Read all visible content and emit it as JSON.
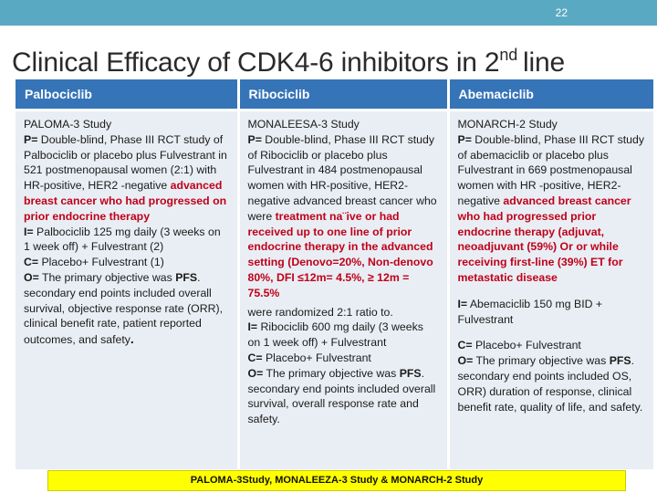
{
  "slide": {
    "page_number": "22"
  },
  "title": {
    "main": "Clinical Efficacy of CDK4-6 inhibitors in 2",
    "sup": "nd",
    "tail": "line"
  },
  "columns": [
    {
      "header": "Palbociclib"
    },
    {
      "header": "Ribociclib"
    },
    {
      "header": "Abemaciclib"
    }
  ],
  "palbo": {
    "study": "PALOMA-3 Study",
    "p_label": "P=",
    "p_text": " Double-blind, Phase III RCT study of Palbociclib or placebo plus Fulvestrant in 521 postmenopausal women (2:1) with HR-positive, HER2 -negative ",
    "p_red": "advanced breast cancer who had progressed on prior endocrine therapy",
    "i_label": "I=",
    "i_text": " Palbociclib 125 mg daily (3 weeks on 1 week off) + Fulvestrant (2)",
    "c_label": "C=",
    "c_text": " Placebo+ Fulvestrant (1)",
    "o_label": "O=",
    "o_text1": " The primary objective was ",
    "o_bold": "PFS",
    "o_text2": ". secondary end points included overall survival, objective response rate (ORR),  clinical benefit rate, patient reported outcomes, and safety",
    "o_end": "."
  },
  "ribo": {
    "study": "MONALEESA-3 Study",
    "p_label": "P=",
    "p_text": " Double-blind, Phase III RCT study of Ribociclib or placebo plus Fulvestrant in 484 postmenopausal women with HR-positive, HER2-negative advanced breast cancer who were ",
    "p_red": "treatment na¨ive or had received up to one line of prior endocrine therapy in the advanced setting (Denovo=20%, Non-denovo 80%, DFI ≤12m= 4.5%, ≥ 12m = 75.5%",
    "p_text2": " were randomized 2:1 ratio to.",
    "i_label": "I=",
    "i_text": " Ribociclib 600 mg daily (3 weeks on 1 week off) + Fulvestrant",
    "c_label": "C=",
    "c_text": " Placebo+ Fulvestrant",
    "o_label": "O=",
    "o_text1": " The primary objective was ",
    "o_bold": "PFS",
    "o_text2": ". secondary end points included overall survival, overall response rate and safety."
  },
  "abema": {
    "study": "MONARCH-2 Study",
    "p_label": "P=",
    "p_text": " Double-blind, Phase III RCT study of abemaciclib or placebo plus Fulvestrant in 669 postmenopausal women with HR -positive, HER2-negative ",
    "p_red": "advanced breast cancer who had progressed prior endocrine therapy (adjuvat, neoadjuvant (59%) Or or while receiving first-line (39%) ET for metastatic disease",
    "i_label": "I=",
    "i_text": " Abemaciclib 150 mg BID + Fulvestrant",
    "c_label": "C=",
    "c_text": " Placebo+ Fulvestrant",
    "o_label": "O=",
    "o_text1": " The primary objective was ",
    "o_bold": "PFS",
    "o_text2": ". secondary end points included OS, ORR) duration of response, clinical benefit rate, quality of life, and safety."
  },
  "footer": {
    "text": "PALOMA-3Study, MONALEEZA-3 Study & MONARCH-2 Study"
  },
  "colors": {
    "header_bg": "#3674b8",
    "cell_bg": "#e9eef4",
    "emphasis": "#c0001a",
    "footer_bg": "#ffff00",
    "topbar": "#5aa9c2"
  }
}
